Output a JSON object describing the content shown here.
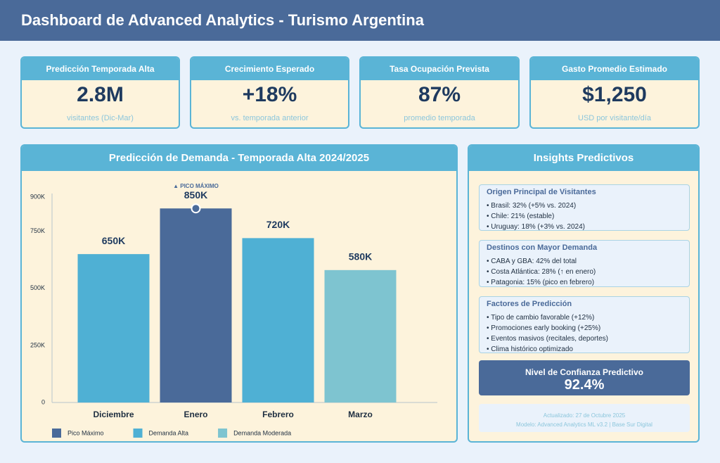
{
  "header": {
    "title": "Dashboard de Advanced Analytics - Turismo Argentina"
  },
  "kpis": [
    {
      "title": "Predicción Temporada Alta",
      "value": "2.8M",
      "caption": "visitantes (Dic-Mar)"
    },
    {
      "title": "Crecimiento Esperado",
      "value": "+18%",
      "caption": "vs. temporada anterior"
    },
    {
      "title": "Tasa Ocupación Prevista",
      "value": "87%",
      "caption": "promedio temporada"
    },
    {
      "title": "Gasto Promedio Estimado",
      "value": "$1,250",
      "caption": "USD por visitante/día"
    }
  ],
  "chart_data": {
    "type": "bar",
    "title": "Predicción de Demanda - Temporada Alta 2024/2025",
    "annotation": "▲ PICO MÁXIMO",
    "categories": [
      "Diciembre",
      "Enero",
      "Febrero",
      "Marzo"
    ],
    "series": [
      {
        "name": "Pico Máximo",
        "color": "#4a6a99",
        "values": [
          null,
          850000,
          null,
          null
        ],
        "value_labels": [
          null,
          "850K",
          null,
          null
        ]
      },
      {
        "name": "Demanda Alta",
        "color": "#4fb0d4",
        "values": [
          650000,
          null,
          720000,
          null
        ],
        "value_labels": [
          "650K",
          null,
          "720K",
          null
        ]
      },
      {
        "name": "Demanda Moderada",
        "color": "#7ec4d0",
        "values": [
          null,
          null,
          null,
          580000
        ],
        "value_labels": [
          null,
          null,
          null,
          "580K"
        ]
      }
    ],
    "ylim": [
      0,
      900000
    ],
    "yticks": [
      0,
      {
        "value": 250000,
        "label": "250K"
      },
      {
        "value": 500000,
        "label": "500K"
      },
      {
        "value": 750000,
        "label": "750K"
      },
      {
        "value": 900000,
        "label": "900K"
      }
    ]
  },
  "insights": {
    "title": "Insights Predictivos",
    "sections": [
      {
        "title": "Origen Principal de Visitantes",
        "items": [
          "• Brasil: 32% (+5% vs. 2024)",
          "• Chile: 21% (estable)",
          "• Uruguay: 18% (+3% vs. 2024)"
        ]
      },
      {
        "title": "Destinos con Mayor Demanda",
        "items": [
          "• CABA y GBA: 42% del total",
          "• Costa Atlántica: 28% (↑ en enero)",
          "• Patagonia: 15% (pico en febrero)"
        ]
      },
      {
        "title": "Factores de Predicción",
        "items": [
          "• Tipo de cambio favorable (+12%)",
          "• Promociones early booking (+25%)",
          "• Eventos masivos (recitales, deportes)",
          "• Clima histórico optimizado"
        ]
      }
    ],
    "confidence": {
      "label": "Nivel de Confianza Predictivo",
      "value": "92.4%"
    },
    "footer": [
      "Actualizado: 27 de Octubre 2025",
      "Modelo: Advanced Analytics ML v3.2 | Base Sur Digital"
    ]
  }
}
